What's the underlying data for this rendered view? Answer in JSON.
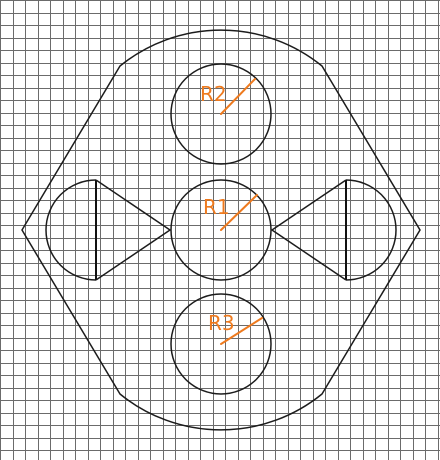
{
  "colors": {
    "background": "#ffffff",
    "grid": "#6b6b6b",
    "outline": "#1c1c1c",
    "dimension": "#ee7a1e"
  },
  "labels": {
    "r1": "R1",
    "r2": "R2",
    "r3": "R3"
  }
}
